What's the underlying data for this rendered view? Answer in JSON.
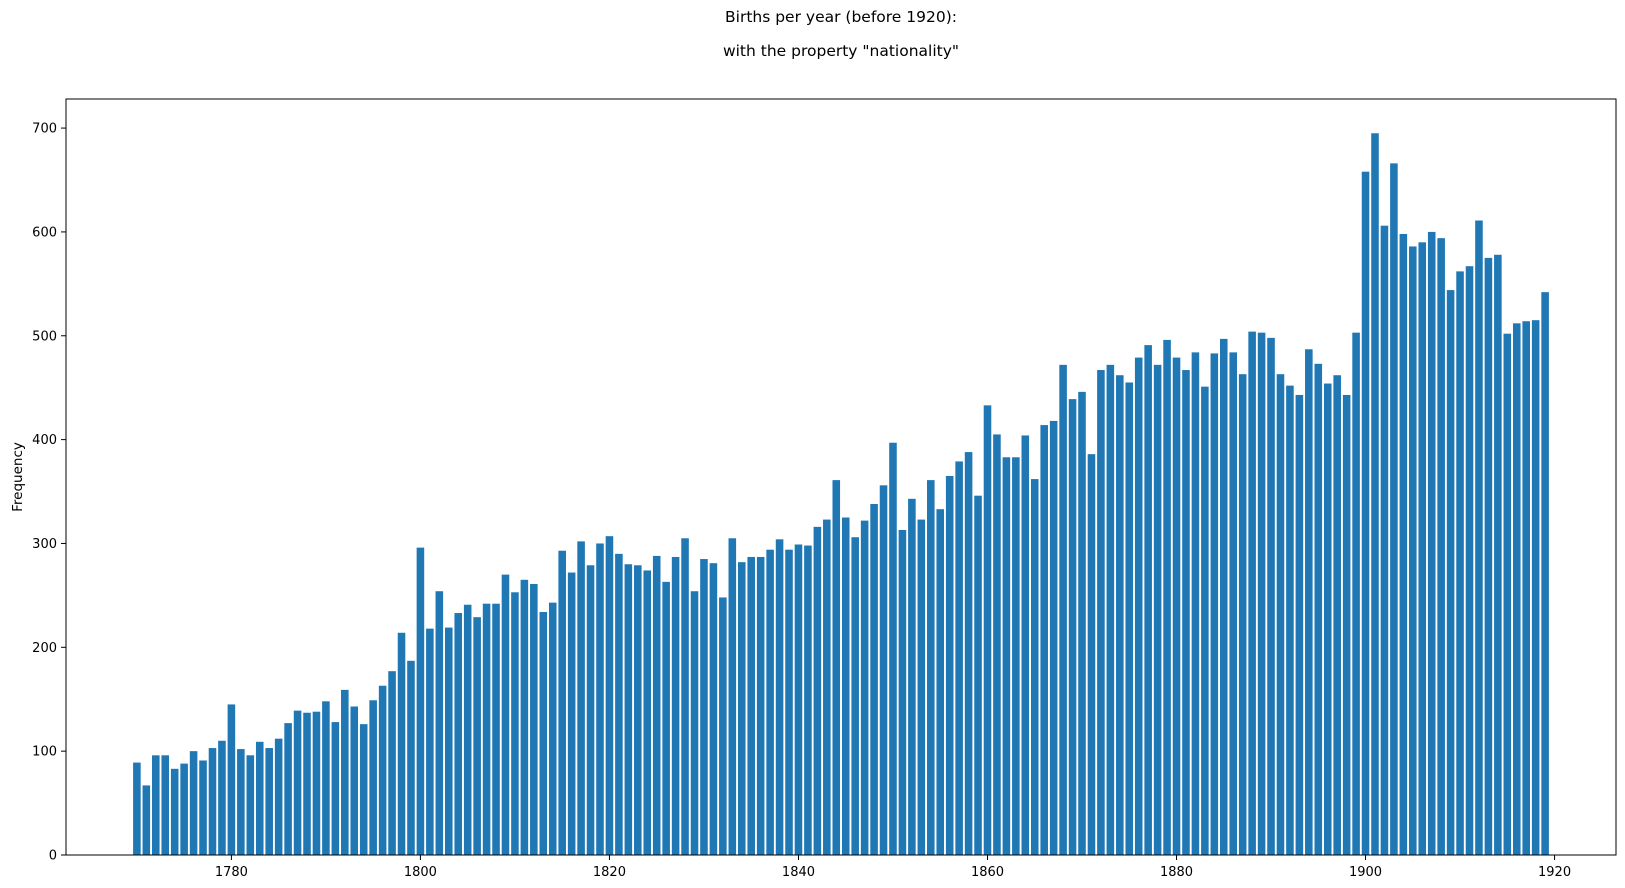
{
  "title": "Births per year (before 1920):",
  "subtitle": "with the property \"nationality\"",
  "colors": {
    "bar": "#1f77b4",
    "axis": "#000000",
    "background": "#ffffff"
  },
  "chart_data": {
    "type": "bar",
    "title": "Births per year (before 1920):",
    "subtitle": "with the property \"nationality\"",
    "xlabel": "",
    "ylabel": "Frequency",
    "xlim": [
      1762.5,
      1926.5
    ],
    "ylim": [
      0,
      728
    ],
    "grid": false,
    "legend": "none",
    "x_ticks": [
      1780,
      1800,
      1820,
      1840,
      1860,
      1880,
      1900,
      1920
    ],
    "y_ticks": [
      0,
      100,
      200,
      300,
      400,
      500,
      600,
      700
    ],
    "x": [
      1770,
      1771,
      1772,
      1773,
      1774,
      1775,
      1776,
      1777,
      1778,
      1779,
      1780,
      1781,
      1782,
      1783,
      1784,
      1785,
      1786,
      1787,
      1788,
      1789,
      1790,
      1791,
      1792,
      1793,
      1794,
      1795,
      1796,
      1797,
      1798,
      1799,
      1800,
      1801,
      1802,
      1803,
      1804,
      1805,
      1806,
      1807,
      1808,
      1809,
      1810,
      1811,
      1812,
      1813,
      1814,
      1815,
      1816,
      1817,
      1818,
      1819,
      1820,
      1821,
      1822,
      1823,
      1824,
      1825,
      1826,
      1827,
      1828,
      1829,
      1830,
      1831,
      1832,
      1833,
      1834,
      1835,
      1836,
      1837,
      1838,
      1839,
      1840,
      1841,
      1842,
      1843,
      1844,
      1845,
      1846,
      1847,
      1848,
      1849,
      1850,
      1851,
      1852,
      1853,
      1854,
      1855,
      1856,
      1857,
      1858,
      1859,
      1860,
      1861,
      1862,
      1863,
      1864,
      1865,
      1866,
      1867,
      1868,
      1869,
      1870,
      1871,
      1872,
      1873,
      1874,
      1875,
      1876,
      1877,
      1878,
      1879,
      1880,
      1881,
      1882,
      1883,
      1884,
      1885,
      1886,
      1887,
      1888,
      1889,
      1890,
      1891,
      1892,
      1893,
      1894,
      1895,
      1896,
      1897,
      1898,
      1899,
      1900,
      1901,
      1902,
      1903,
      1904,
      1905,
      1906,
      1907,
      1908,
      1909,
      1910,
      1911,
      1912,
      1913,
      1914,
      1915,
      1916,
      1917,
      1918,
      1919
    ],
    "values": [
      89,
      67,
      96,
      96,
      83,
      88,
      100,
      91,
      103,
      110,
      145,
      102,
      96,
      109,
      103,
      112,
      127,
      139,
      137,
      138,
      148,
      128,
      159,
      143,
      126,
      149,
      163,
      177,
      214,
      187,
      296,
      218,
      254,
      219,
      233,
      241,
      229,
      242,
      242,
      270,
      253,
      265,
      261,
      234,
      243,
      293,
      272,
      302,
      279,
      300,
      307,
      290,
      280,
      279,
      274,
      288,
      263,
      287,
      305,
      254,
      285,
      281,
      248,
      305,
      282,
      287,
      287,
      294,
      304,
      294,
      299,
      298,
      316,
      323,
      361,
      325,
      306,
      322,
      338,
      356,
      397,
      313,
      343,
      323,
      361,
      333,
      365,
      379,
      388,
      346,
      433,
      405,
      383,
      383,
      404,
      362,
      414,
      418,
      472,
      439,
      446,
      386,
      467,
      472,
      462,
      455,
      479,
      491,
      472,
      496,
      479,
      467,
      484,
      451,
      483,
      497,
      484,
      463,
      504,
      503,
      498,
      463,
      452,
      443,
      487,
      473,
      454,
      462,
      443,
      503,
      658,
      695,
      606,
      666,
      598,
      586,
      590,
      600,
      594,
      544,
      562,
      567,
      611,
      575,
      578,
      502,
      512,
      514,
      515,
      542
    ]
  }
}
